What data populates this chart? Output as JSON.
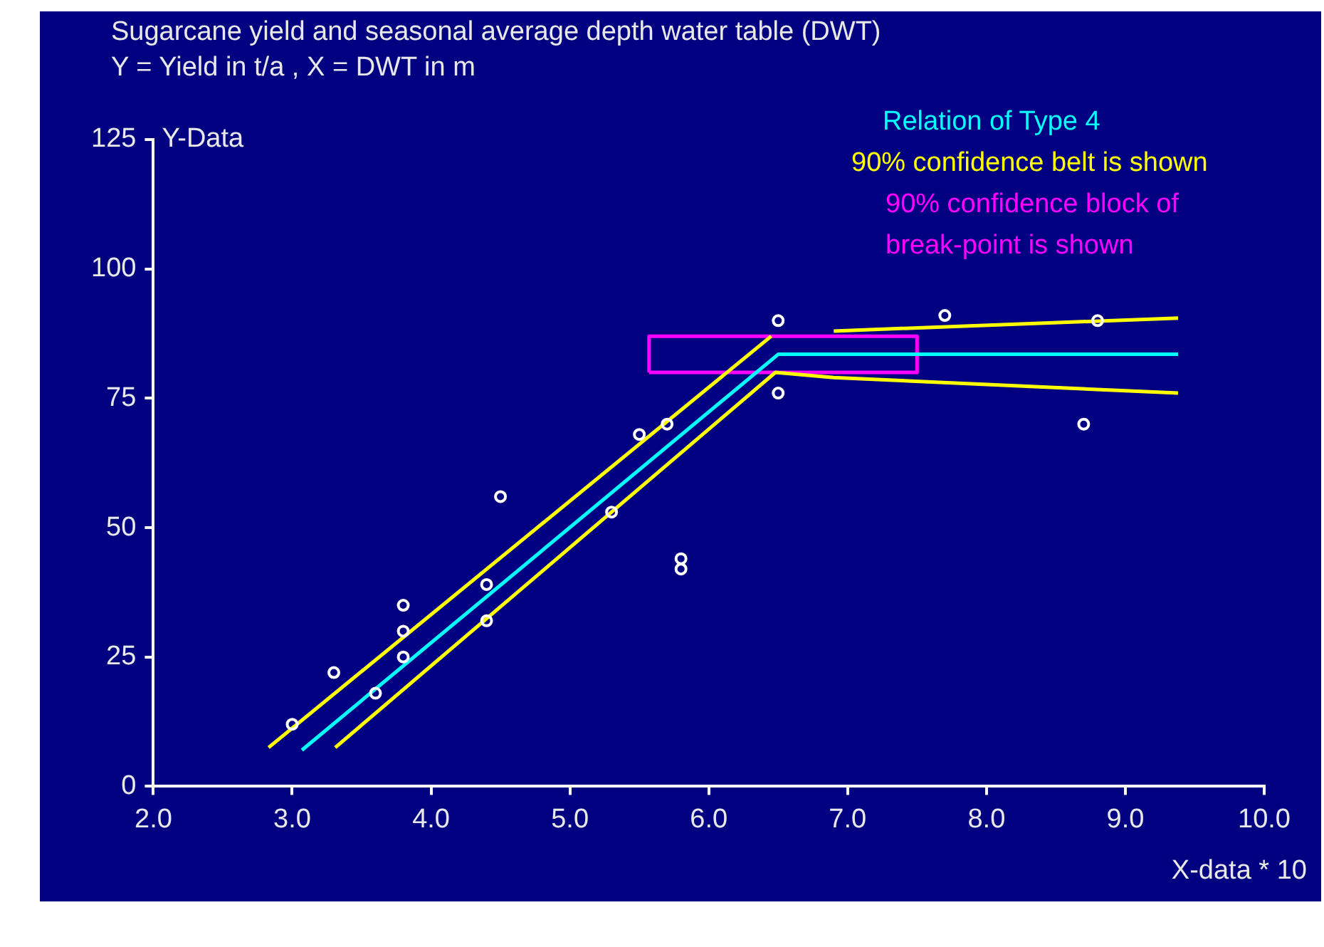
{
  "chart_data": {
    "type": "scatter",
    "title": "Sugarcane yield and seasonal average depth water table (DWT)",
    "subtitle": "Y = Yield in t/a , X = DWT in m",
    "xlabel": "X-data * 10",
    "ylabel": "Y-Data",
    "xlim": [
      2,
      10
    ],
    "xticks": [
      {
        "value": 2,
        "label": "2.0"
      },
      {
        "value": 3,
        "label": "3.0"
      },
      {
        "value": 4,
        "label": "4.0"
      },
      {
        "value": 5,
        "label": "5.0"
      },
      {
        "value": 6,
        "label": "6.0"
      },
      {
        "value": 7,
        "label": "7.0"
      },
      {
        "value": 8,
        "label": "8.0"
      },
      {
        "value": 9,
        "label": "9.0"
      },
      {
        "value": 10,
        "label": "10.0"
      }
    ],
    "ylim": [
      0,
      125
    ],
    "yticks": [
      0,
      25,
      50,
      75,
      100,
      125
    ],
    "grid": false,
    "legend": "top right",
    "series": [
      {
        "type": "scatter",
        "color": "#ffffff",
        "marker": "circle",
        "x": [
          3.0,
          3.3,
          3.6,
          3.8,
          3.8,
          3.8,
          4.4,
          4.4,
          4.5,
          5.3,
          5.5,
          5.7,
          5.8,
          5.8,
          6.5,
          6.5,
          7.7,
          8.7,
          8.8
        ],
        "values": [
          12,
          22,
          18,
          35,
          30,
          25,
          39,
          32,
          56,
          53,
          68,
          70,
          44,
          42,
          90,
          76,
          91,
          70,
          90
        ]
      },
      {
        "type": "line",
        "name": "Relation of Type 4",
        "color": "#00ffff",
        "x": [
          3.07,
          6.5,
          9.38
        ],
        "values": [
          7,
          83.5,
          83.5
        ]
      },
      {
        "type": "line",
        "name": "90% confidence belt is shown",
        "color": "#ffff00",
        "x": [
          2.83,
          6.45,
          null,
          6.9,
          9.38
        ],
        "values": [
          7.5,
          87,
          null,
          88,
          90.5
        ]
      },
      {
        "type": "line",
        "color": "#ffff00",
        "x": [
          3.31,
          6.48,
          6.9,
          9.38
        ],
        "values": [
          7.5,
          80,
          79,
          76
        ]
      },
      {
        "type": "line",
        "name": "90% confidence block of break-point is shown",
        "color": "#ff00ff",
        "x": [
          5.57,
          5.57,
          7.5,
          7.5
        ],
        "values": [
          80,
          87,
          87,
          80
        ]
      },
      {
        "type": "line",
        "color": "#ff00ff",
        "x": [
          5.57,
          7.5
        ],
        "values": [
          80,
          80
        ]
      }
    ]
  }
}
